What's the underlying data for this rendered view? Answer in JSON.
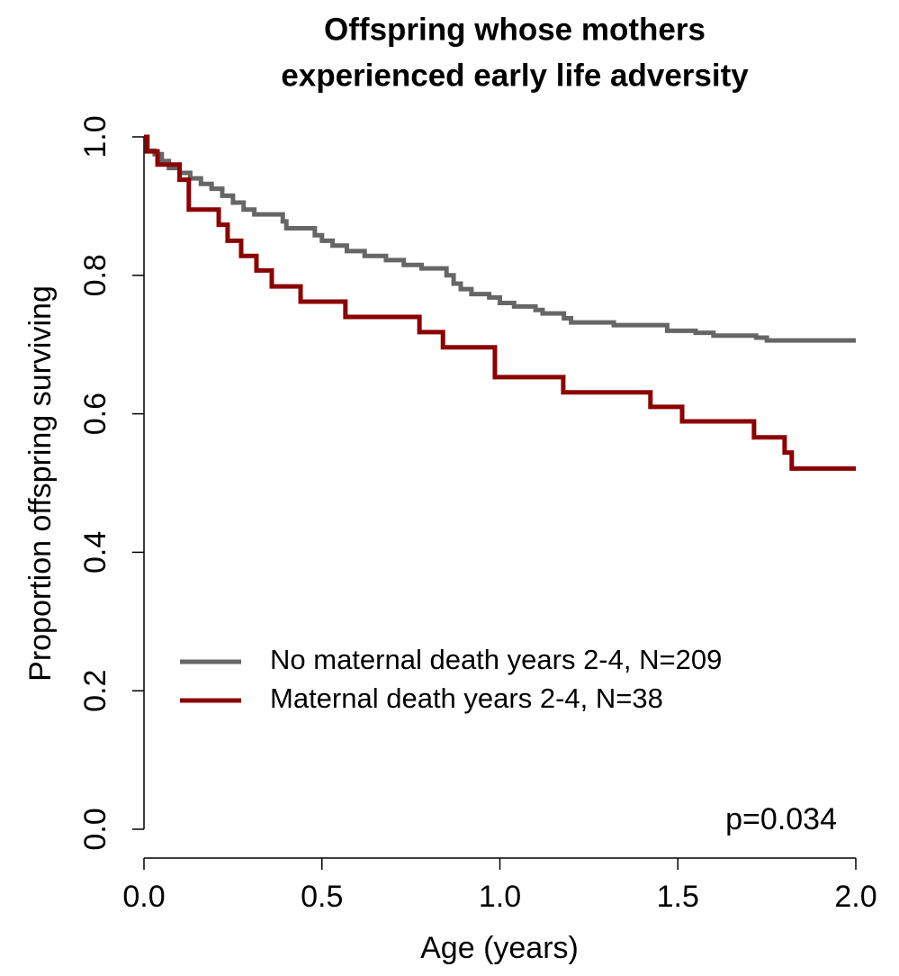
{
  "chart_data": {
    "type": "step",
    "title": [
      "Offspring whose mothers",
      "experienced early life adversity"
    ],
    "xlabel": "Age (years)",
    "ylabel": "Proportion offspring surviving",
    "xlim": [
      0,
      2
    ],
    "ylim": [
      0,
      1
    ],
    "xticks": [
      {
        "value": 0,
        "label": "0.0"
      },
      0.5,
      {
        "value": 1,
        "label": "1.0"
      },
      1.5,
      {
        "value": 2,
        "label": "2.0"
      }
    ],
    "yticks": [
      {
        "value": 0,
        "label": "0.0"
      },
      0.2,
      0.4,
      0.6,
      0.8,
      {
        "value": 1,
        "label": "1.0"
      }
    ],
    "legend": "center-left",
    "annotation": "p=0.034",
    "series": [
      {
        "name": "No maternal death years 2-4, N=209",
        "color": "#666666",
        "x": [
          0,
          0.01,
          0.03,
          0.05,
          0.07,
          0.1,
          0.13,
          0.16,
          0.19,
          0.22,
          0.25,
          0.28,
          0.31,
          0.39,
          0.4,
          0.48,
          0.5,
          0.53,
          0.57,
          0.62,
          0.68,
          0.73,
          0.78,
          0.85,
          0.87,
          0.89,
          0.92,
          0.97,
          1.0,
          1.04,
          1.1,
          1.12,
          1.18,
          1.2,
          1.32,
          1.47,
          1.55,
          1.6,
          1.72,
          1.75,
          2.0
        ],
        "values": [
          1.0,
          0.98,
          0.975,
          0.965,
          0.955,
          0.948,
          0.94,
          0.932,
          0.925,
          0.915,
          0.905,
          0.895,
          0.888,
          0.878,
          0.868,
          0.858,
          0.85,
          0.843,
          0.835,
          0.828,
          0.822,
          0.815,
          0.81,
          0.8,
          0.788,
          0.78,
          0.773,
          0.768,
          0.76,
          0.755,
          0.75,
          0.745,
          0.738,
          0.732,
          0.728,
          0.72,
          0.717,
          0.713,
          0.71,
          0.706,
          0.706
        ]
      },
      {
        "name": "Maternal death years 2-4, N=38",
        "color": "#8b0000",
        "x": [
          0,
          0.008,
          0.038,
          0.1,
          0.126,
          0.21,
          0.235,
          0.273,
          0.316,
          0.359,
          0.44,
          0.566,
          0.774,
          0.84,
          0.986,
          1.178,
          1.423,
          1.512,
          1.714,
          1.8,
          1.82,
          2.0
        ],
        "values": [
          1.0,
          0.979,
          0.96,
          0.938,
          0.895,
          0.873,
          0.85,
          0.828,
          0.807,
          0.784,
          0.762,
          0.74,
          0.718,
          0.696,
          0.653,
          0.631,
          0.61,
          0.589,
          0.566,
          0.544,
          0.521,
          0.521
        ]
      }
    ]
  }
}
